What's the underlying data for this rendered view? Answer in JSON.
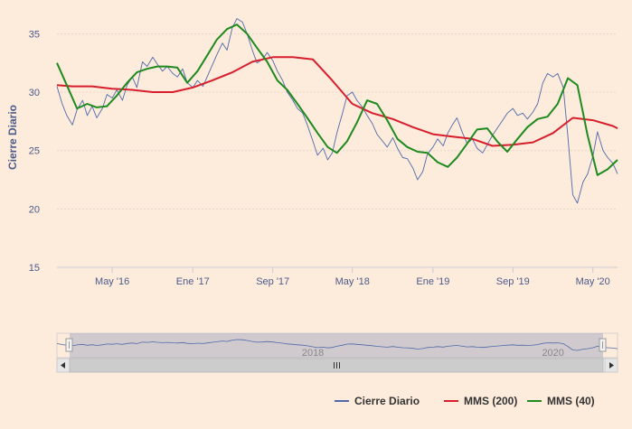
{
  "chart_data": {
    "type": "line",
    "ylabel": "Cierre Diario",
    "ylim": [
      15,
      36.5
    ],
    "yticks": [
      15,
      20,
      25,
      30,
      35
    ],
    "xlim": [
      "2015-11-15",
      "2020-07-15"
    ],
    "xticks": [
      {
        "date": "2016-05-01",
        "label": "May '16"
      },
      {
        "date": "2017-01-01",
        "label": "Ene '17"
      },
      {
        "date": "2017-09-01",
        "label": "Sep '17"
      },
      {
        "date": "2018-05-01",
        "label": "May '18"
      },
      {
        "date": "2019-01-01",
        "label": "Ene '19"
      },
      {
        "date": "2019-09-01",
        "label": "Sep '19"
      },
      {
        "date": "2020-05-01",
        "label": "May '20"
      }
    ],
    "grid": {
      "horizontal": true,
      "vertical": false
    },
    "legend": "bottom-right",
    "navigator": {
      "labels": [
        {
          "date": "2018-01-01",
          "label": "2018"
        },
        {
          "date": "2020-01-01",
          "label": "2020"
        }
      ]
    },
    "series": [
      {
        "name": "Cierre Diario",
        "color": "#4f6aa8",
        "x": [
          "2015-11-15",
          "2015-12-01",
          "2015-12-15",
          "2016-01-01",
          "2016-01-15",
          "2016-02-01",
          "2016-02-15",
          "2016-03-01",
          "2016-03-15",
          "2016-04-01",
          "2016-04-15",
          "2016-05-01",
          "2016-05-15",
          "2016-06-01",
          "2016-06-15",
          "2016-07-01",
          "2016-07-15",
          "2016-08-01",
          "2016-08-15",
          "2016-09-01",
          "2016-09-15",
          "2016-10-01",
          "2016-10-15",
          "2016-11-01",
          "2016-11-15",
          "2016-12-01",
          "2016-12-15",
          "2017-01-01",
          "2017-01-15",
          "2017-02-01",
          "2017-02-15",
          "2017-03-01",
          "2017-03-15",
          "2017-04-01",
          "2017-04-15",
          "2017-05-01",
          "2017-05-15",
          "2017-06-01",
          "2017-06-15",
          "2017-07-01",
          "2017-07-15",
          "2017-08-01",
          "2017-08-15",
          "2017-09-01",
          "2017-09-15",
          "2017-10-01",
          "2017-10-15",
          "2017-11-01",
          "2017-11-15",
          "2017-12-01",
          "2017-12-15",
          "2018-01-01",
          "2018-01-15",
          "2018-02-01",
          "2018-02-15",
          "2018-03-01",
          "2018-03-15",
          "2018-04-01",
          "2018-04-15",
          "2018-05-01",
          "2018-05-15",
          "2018-06-01",
          "2018-06-15",
          "2018-07-01",
          "2018-07-15",
          "2018-08-01",
          "2018-08-15",
          "2018-09-01",
          "2018-09-15",
          "2018-10-01",
          "2018-10-15",
          "2018-11-01",
          "2018-11-15",
          "2018-12-01",
          "2018-12-15",
          "2019-01-01",
          "2019-01-15",
          "2019-02-01",
          "2019-02-15",
          "2019-03-01",
          "2019-03-15",
          "2019-04-01",
          "2019-04-15",
          "2019-05-01",
          "2019-05-15",
          "2019-06-01",
          "2019-06-15",
          "2019-07-01",
          "2019-07-15",
          "2019-08-01",
          "2019-08-15",
          "2019-09-01",
          "2019-09-15",
          "2019-10-01",
          "2019-10-15",
          "2019-11-01",
          "2019-11-15",
          "2019-12-01",
          "2019-12-15",
          "2020-01-01",
          "2020-01-15",
          "2020-02-01",
          "2020-02-15",
          "2020-03-01",
          "2020-03-15",
          "2020-04-01",
          "2020-04-15",
          "2020-05-01",
          "2020-05-15",
          "2020-06-01",
          "2020-06-15",
          "2020-07-01",
          "2020-07-15"
        ],
        "values": [
          30.5,
          29.0,
          28.0,
          27.2,
          28.5,
          29.3,
          28.0,
          28.8,
          27.8,
          28.6,
          29.8,
          29.5,
          30.2,
          29.3,
          30.6,
          31.3,
          30.4,
          32.6,
          32.2,
          33.0,
          32.4,
          31.8,
          32.2,
          31.6,
          31.3,
          32.0,
          30.8,
          30.4,
          31.0,
          30.5,
          31.4,
          32.3,
          33.2,
          34.2,
          33.6,
          35.5,
          36.3,
          36.0,
          35.0,
          33.6,
          32.5,
          32.8,
          33.4,
          32.7,
          31.8,
          31.0,
          30.0,
          29.3,
          28.6,
          28.2,
          27.2,
          25.8,
          24.6,
          25.2,
          24.2,
          24.8,
          26.5,
          28.2,
          29.7,
          30.0,
          29.3,
          28.7,
          28.0,
          27.3,
          26.4,
          25.8,
          25.3,
          26.1,
          25.2,
          24.4,
          24.3,
          23.5,
          22.5,
          23.2,
          24.7,
          25.3,
          26.0,
          25.4,
          26.5,
          27.2,
          27.8,
          26.5,
          25.6,
          26.0,
          25.2,
          24.8,
          25.5,
          26.3,
          26.9,
          27.6,
          28.2,
          28.6,
          28.0,
          28.2,
          27.7,
          28.3,
          29.0,
          30.8,
          31.6,
          31.3,
          31.6,
          30.4,
          26.2,
          21.2,
          20.5,
          22.3,
          23.0,
          24.5,
          26.6,
          25.0,
          24.4,
          23.9,
          23.0
        ]
      },
      {
        "name": "MMS (200)",
        "color": "#d81e2c",
        "x": [
          "2015-11-15",
          "2016-01-01",
          "2016-03-01",
          "2016-05-01",
          "2016-07-01",
          "2016-09-01",
          "2016-11-01",
          "2017-01-01",
          "2017-03-01",
          "2017-05-01",
          "2017-07-01",
          "2017-09-01",
          "2017-11-01",
          "2018-01-01",
          "2018-03-01",
          "2018-05-01",
          "2018-07-01",
          "2018-09-01",
          "2018-11-01",
          "2019-01-01",
          "2019-03-01",
          "2019-05-01",
          "2019-07-01",
          "2019-09-01",
          "2019-11-01",
          "2020-01-01",
          "2020-03-01",
          "2020-05-01",
          "2020-07-01",
          "2020-07-15"
        ],
        "values": [
          30.6,
          30.5,
          30.5,
          30.3,
          30.2,
          30.0,
          30.0,
          30.4,
          31.0,
          31.7,
          32.6,
          33.0,
          33.0,
          32.8,
          31.0,
          29.0,
          28.2,
          27.7,
          27.0,
          26.4,
          26.2,
          26.0,
          25.4,
          25.5,
          25.7,
          26.5,
          27.8,
          27.6,
          27.1,
          26.9
        ]
      },
      {
        "name": "MMS (40)",
        "color": "#1f8a1f",
        "x": [
          "2015-11-15",
          "2015-12-15",
          "2016-01-15",
          "2016-02-15",
          "2016-03-15",
          "2016-04-15",
          "2016-05-15",
          "2016-06-15",
          "2016-07-15",
          "2016-08-15",
          "2016-09-15",
          "2016-10-15",
          "2016-11-15",
          "2016-12-15",
          "2017-01-15",
          "2017-02-15",
          "2017-03-15",
          "2017-04-15",
          "2017-05-15",
          "2017-06-15",
          "2017-07-15",
          "2017-08-15",
          "2017-09-15",
          "2017-10-15",
          "2017-11-15",
          "2017-12-15",
          "2018-01-15",
          "2018-02-15",
          "2018-03-15",
          "2018-04-15",
          "2018-05-15",
          "2018-06-15",
          "2018-07-15",
          "2018-08-15",
          "2018-09-15",
          "2018-10-15",
          "2018-11-15",
          "2018-12-15",
          "2019-01-15",
          "2019-02-15",
          "2019-03-15",
          "2019-04-15",
          "2019-05-15",
          "2019-06-15",
          "2019-07-15",
          "2019-08-15",
          "2019-09-15",
          "2019-10-15",
          "2019-11-15",
          "2019-12-15",
          "2020-01-15",
          "2020-02-15",
          "2020-03-15",
          "2020-04-15",
          "2020-05-15",
          "2020-06-15",
          "2020-07-15"
        ],
        "values": [
          32.5,
          30.6,
          28.6,
          29.0,
          28.7,
          28.8,
          29.7,
          30.8,
          31.7,
          32.0,
          32.2,
          32.2,
          32.1,
          30.8,
          31.8,
          33.2,
          34.5,
          35.4,
          35.8,
          35.0,
          33.8,
          32.6,
          31.0,
          30.2,
          29.0,
          27.8,
          26.5,
          25.3,
          24.8,
          25.8,
          27.4,
          29.3,
          29.0,
          27.6,
          26.0,
          25.3,
          24.9,
          24.8,
          24.0,
          23.6,
          24.4,
          25.6,
          26.8,
          26.9,
          25.8,
          24.9,
          26.0,
          27.0,
          27.7,
          27.9,
          29.0,
          31.2,
          30.6,
          26.3,
          22.9,
          23.4,
          24.2
        ]
      }
    ]
  }
}
